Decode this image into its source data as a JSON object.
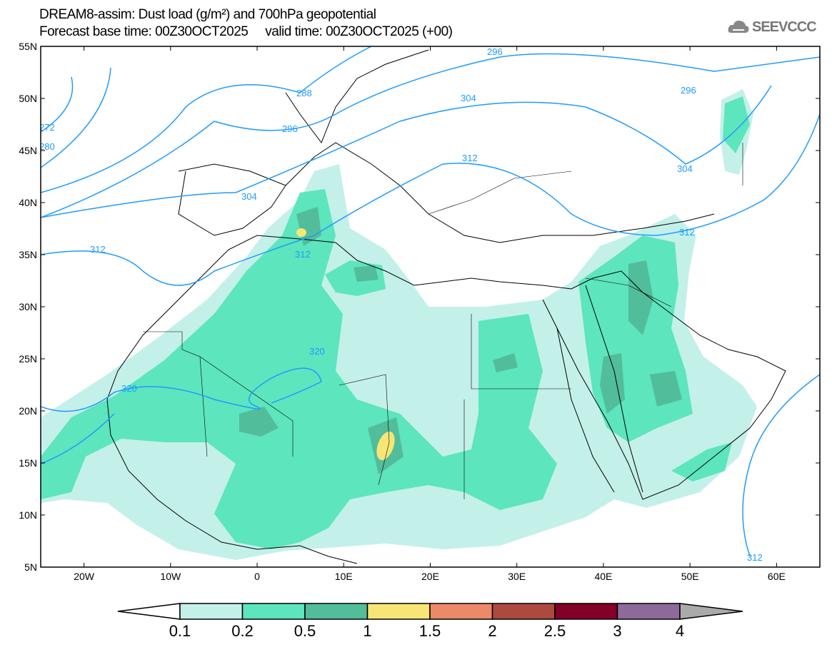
{
  "header": {
    "title": "DREAM8-assim: Dust load (g/m²) and 700hPa geopotential",
    "subtitle": "Forecast base time: 00Z30OCT2025     valid time: 00Z30OCT2025 (+00)",
    "logo_text": "SEEVCCC"
  },
  "axes": {
    "lat_labels": [
      "55N",
      "50N",
      "45N",
      "40N",
      "35N",
      "30N",
      "25N",
      "20N",
      "15N",
      "10N",
      "5N"
    ],
    "lon_labels": [
      "20W",
      "10W",
      "0",
      "10E",
      "20E",
      "30E",
      "40E",
      "50E",
      "60E"
    ]
  },
  "contours": {
    "color": "#1e9bff",
    "labels": [
      "272",
      "280",
      "288",
      "296",
      "296",
      "296",
      "304",
      "304",
      "304",
      "312",
      "312",
      "312",
      "312",
      "312",
      "320",
      "320"
    ]
  },
  "colorbar": {
    "levels": [
      "0.1",
      "0.2",
      "0.5",
      "1",
      "1.5",
      "2",
      "2.5",
      "3",
      "4"
    ],
    "colors": [
      "#ffffff",
      "#c4f0ea",
      "#5de5bd",
      "#52bd9b",
      "#f7e676",
      "#ec8a68",
      "#ad4a3f",
      "#830028",
      "#8e6a9b",
      "#aaaaaa"
    ]
  }
}
